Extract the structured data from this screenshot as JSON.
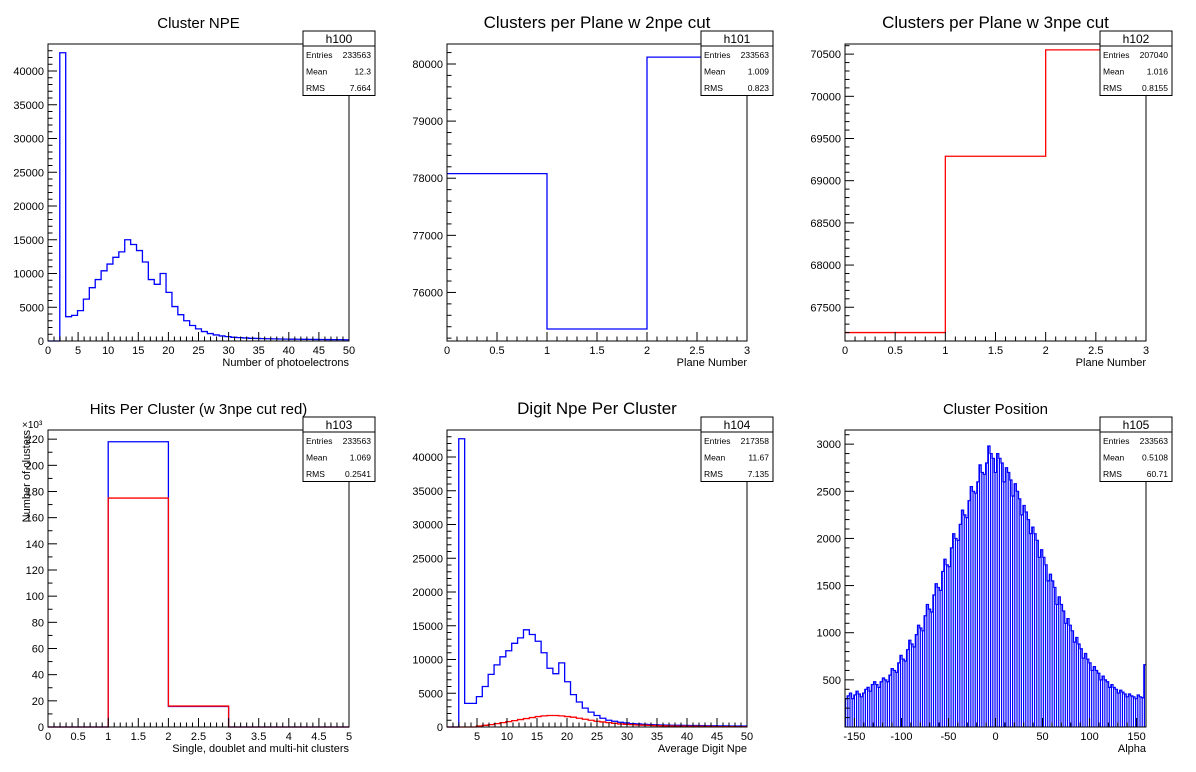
{
  "chart_data": [
    {
      "type": "histogram",
      "title": "Cluster NPE",
      "xlabel": "Number of photoelectrons",
      "ylabel": "",
      "xlim": [
        0,
        50
      ],
      "ylim": [
        0,
        44000
      ],
      "xticks": [
        0,
        5,
        10,
        15,
        20,
        25,
        30,
        35,
        40,
        45,
        50
      ],
      "yticks": [
        0,
        5000,
        10000,
        15000,
        20000,
        25000,
        30000,
        35000,
        40000
      ],
      "ytick_labels": [
        "0",
        "5000",
        "10000",
        "15000",
        "20000",
        "25000",
        "30000",
        "35000",
        "40000"
      ],
      "xminor_per_major": 5,
      "yminor_per_major": 5,
      "yexponent": "",
      "stats": {
        "name": "h100",
        "rows": [
          [
            "Entries",
            "233563"
          ],
          [
            "Mean",
            "12.3"
          ],
          [
            "RMS",
            "7.664"
          ]
        ]
      },
      "series": [
        {
          "color": "#0000ff",
          "edges": [
            0,
            50
          ],
          "values": [
            0,
            0,
            42700,
            3600,
            3800,
            4500,
            6200,
            7900,
            9100,
            10400,
            11400,
            12400,
            13200,
            15000,
            14300,
            13400,
            11700,
            9100,
            8400,
            10000,
            7200,
            5100,
            3900,
            3000,
            2300,
            1800,
            1400,
            1100,
            900,
            750,
            650,
            550,
            500,
            450,
            400,
            380,
            350,
            330,
            310,
            300,
            280,
            270,
            260,
            250,
            240,
            230,
            220,
            210,
            200,
            200,
            190
          ]
        }
      ]
    },
    {
      "type": "histogram",
      "title": "Clusters per Plane w 2npe cut",
      "xlabel": "Plane Number",
      "ylabel": "",
      "xlim": [
        0,
        3
      ],
      "ylim": [
        75150,
        80350
      ],
      "xticks": [
        0,
        0.5,
        1,
        1.5,
        2,
        2.5,
        3
      ],
      "yticks": [
        76000,
        77000,
        78000,
        79000,
        80000
      ],
      "ytick_labels": [
        "76000",
        "77000",
        "78000",
        "79000",
        "80000"
      ],
      "xminor_per_major": 5,
      "yminor_per_major": 5,
      "yexponent": "",
      "stats": {
        "name": "h101",
        "rows": [
          [
            "Entries",
            "233563"
          ],
          [
            "Mean",
            "1.009"
          ],
          [
            "RMS",
            "0.823"
          ]
        ]
      },
      "series": [
        {
          "color": "#0000ff",
          "edges": [
            0,
            3
          ],
          "values": [
            78080,
            75360,
            80120
          ]
        }
      ]
    },
    {
      "type": "histogram",
      "title": "Clusters per Plane w 3npe cut",
      "xlabel": "Plane Number",
      "ylabel": "",
      "xlim": [
        0,
        3
      ],
      "ylim": [
        67100,
        70620
      ],
      "xticks": [
        0,
        0.5,
        1,
        1.5,
        2,
        2.5,
        3
      ],
      "yticks": [
        67500,
        68000,
        68500,
        69000,
        69500,
        70000,
        70500
      ],
      "ytick_labels": [
        "67500",
        "68000",
        "68500",
        "69000",
        "69500",
        "70000",
        "70500"
      ],
      "xminor_per_major": 5,
      "yminor_per_major": 5,
      "yexponent": "",
      "stats": {
        "name": "h102",
        "rows": [
          [
            "Entries",
            "207040"
          ],
          [
            "Mean",
            "1.016"
          ],
          [
            "RMS",
            "0.8155"
          ]
        ]
      },
      "series": [
        {
          "color": "#ff0000",
          "edges": [
            0,
            3
          ],
          "values": [
            67200,
            69290,
            70550
          ]
        }
      ]
    },
    {
      "type": "histogram",
      "title": "Hits Per Cluster (w 3npe cut red)",
      "xlabel": "Single, doublet and multi-hit clusters",
      "ylabel": "Number of clusters",
      "xlim": [
        0,
        5
      ],
      "ylim": [
        0,
        227
      ],
      "xticks": [
        0,
        0.5,
        1,
        1.5,
        2,
        2.5,
        3,
        3.5,
        4,
        4.5,
        5
      ],
      "yticks": [
        0,
        20,
        40,
        60,
        80,
        100,
        120,
        140,
        160,
        180,
        200,
        220
      ],
      "ytick_labels": [
        "0",
        "20",
        "40",
        "60",
        "80",
        "100",
        "120",
        "140",
        "160",
        "180",
        "200",
        "220"
      ],
      "xminor_per_major": 5,
      "yminor_per_major": 2,
      "yexponent": "×10³",
      "stats": {
        "name": "h103",
        "rows": [
          [
            "Entries",
            "233563"
          ],
          [
            "Mean",
            "1.069"
          ],
          [
            "RMS",
            "0.2541"
          ]
        ]
      },
      "series": [
        {
          "color": "#0000ff",
          "edges": [
            0,
            5
          ],
          "values": [
            0,
            218,
            15.7,
            0,
            0
          ]
        },
        {
          "color": "#ff0000",
          "edges": [
            0,
            5
          ],
          "values": [
            0,
            175,
            16,
            0,
            0
          ]
        }
      ]
    },
    {
      "type": "histogram",
      "title": "Digit Npe Per Cluster",
      "xlabel": "Average Digit Npe",
      "ylabel": "",
      "xlim": [
        0,
        50
      ],
      "ylim": [
        0,
        44000
      ],
      "xticks": [
        5,
        10,
        15,
        20,
        25,
        30,
        35,
        40,
        45,
        50
      ],
      "yticks": [
        0,
        5000,
        10000,
        15000,
        20000,
        25000,
        30000,
        35000,
        40000
      ],
      "ytick_labels": [
        "0",
        "5000",
        "10000",
        "15000",
        "20000",
        "25000",
        "30000",
        "35000",
        "40000"
      ],
      "xminor_per_major": 5,
      "yminor_per_major": 5,
      "yexponent": "",
      "stats": {
        "name": "h104",
        "rows": [
          [
            "Entries",
            "217358"
          ],
          [
            "Mean",
            "11.67"
          ],
          [
            "RMS",
            "7.135"
          ]
        ]
      },
      "series": [
        {
          "color": "#0000ff",
          "edges": [
            0,
            50
          ],
          "values": [
            0,
            0,
            42700,
            3500,
            3500,
            4500,
            6000,
            7800,
            9200,
            10400,
            11300,
            12400,
            13200,
            14400,
            13700,
            12700,
            11000,
            8700,
            7900,
            9500,
            6700,
            4800,
            3700,
            2800,
            2200,
            1700,
            1300,
            1000,
            850,
            700,
            600,
            500,
            450,
            400,
            360,
            330,
            300,
            280,
            260,
            250,
            230,
            220,
            210,
            200,
            190,
            180,
            170,
            160,
            150,
            150,
            140
          ]
        },
        {
          "color": "#ff0000",
          "edges": [
            0,
            50
          ],
          "values": [
            0,
            0,
            0,
            0,
            0,
            150,
            250,
            350,
            500,
            650,
            800,
            950,
            1100,
            1250,
            1400,
            1550,
            1650,
            1700,
            1700,
            1650,
            1550,
            1450,
            1300,
            1150,
            1000,
            850,
            750,
            650,
            550,
            450,
            400,
            350,
            300,
            270,
            240,
            210,
            190,
            170,
            150,
            130,
            120,
            110,
            100,
            90,
            80,
            70,
            60,
            50,
            45,
            40,
            35
          ]
        }
      ]
    },
    {
      "type": "histogram",
      "title": "Cluster Position",
      "xlabel": "Alpha",
      "ylabel": "",
      "xlim": [
        -160,
        160
      ],
      "ylim": [
        0,
        3150
      ],
      "xticks": [
        -150,
        -100,
        -50,
        0,
        50,
        100,
        150
      ],
      "yticks": [
        500,
        1000,
        1500,
        2000,
        2500,
        3000
      ],
      "ytick_labels": [
        "500",
        "1000",
        "1500",
        "2000",
        "2500",
        "3000"
      ],
      "xminor_per_major": 5,
      "yminor_per_major": 5,
      "yexponent": "",
      "stats": {
        "name": "h105",
        "rows": [
          [
            "Entries",
            "233563"
          ],
          [
            "Mean",
            "0.5108"
          ],
          [
            "RMS",
            "60.71"
          ]
        ]
      },
      "series": [
        {
          "color": "#0000ff",
          "fill": true,
          "edges": [
            -160,
            160
          ],
          "values": [
            300,
            330,
            360,
            300,
            340,
            380,
            350,
            320,
            360,
            400,
            420,
            380,
            450,
            480,
            450,
            420,
            480,
            520,
            500,
            480,
            550,
            620,
            600,
            580,
            680,
            760,
            720,
            700,
            820,
            920,
            880,
            850,
            980,
            1080,
            1050,
            1020,
            1180,
            1300,
            1250,
            1220,
            1400,
            1520,
            1480,
            1450,
            1650,
            1780,
            1720,
            1700,
            1900,
            2050,
            2000,
            1980,
            2150,
            2300,
            2250,
            2220,
            2400,
            2550,
            2500,
            2480,
            2600,
            2780,
            2700,
            2680,
            2800,
            2980,
            2900,
            2850,
            2700,
            2900,
            2850,
            2800,
            2600,
            2750,
            2700,
            2620,
            2450,
            2580,
            2500,
            2420,
            2250,
            2350,
            2280,
            2200,
            2050,
            2120,
            2050,
            1980,
            1800,
            1880,
            1800,
            1720,
            1550,
            1620,
            1550,
            1480,
            1300,
            1380,
            1300,
            1230,
            1100,
            1150,
            1080,
            1020,
            900,
            950,
            880,
            830,
            730,
            780,
            720,
            680,
            600,
            640,
            600,
            570,
            500,
            540,
            500,
            480,
            420,
            450,
            420,
            400,
            360,
            390,
            370,
            350,
            320,
            350,
            330,
            320,
            300,
            340,
            320,
            310,
            660
          ]
        }
      ]
    }
  ]
}
